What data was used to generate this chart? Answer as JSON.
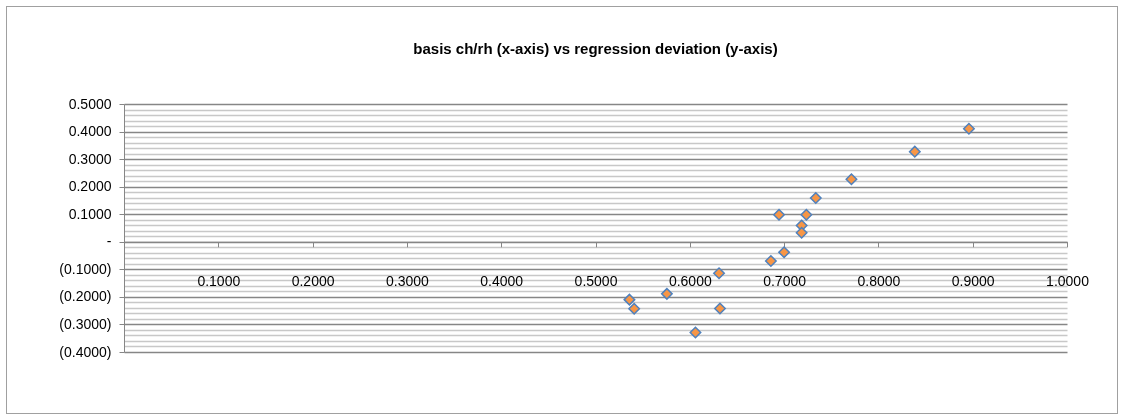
{
  "chart_data": {
    "type": "scatter",
    "title": "basis ch/rh (x-axis) vs regression deviation (y-axis)",
    "x": [
      0.896,
      0.8386,
      0.7714,
      0.7336,
      0.6946,
      0.7236,
      0.7186,
      0.7186,
      0.7,
      0.686,
      0.631,
      0.5757,
      0.536,
      0.541,
      0.632,
      0.606
    ],
    "series": [
      {
        "color": "#f79646",
        "values": [
          0.41,
          0.327,
          0.227,
          0.159,
          0.098,
          0.098,
          0.059,
          0.033,
          -0.038,
          -0.07,
          -0.114,
          -0.189,
          -0.21,
          -0.243,
          -0.242,
          -0.329
        ]
      }
    ],
    "marker": "diamond",
    "grid": "y",
    "xlim": [
      0,
      1
    ],
    "xticks": [
      {
        "value": 0,
        "label": null
      },
      {
        "value": 0.1,
        "label": "0.1000"
      },
      {
        "value": 0.2,
        "label": "0.2000"
      },
      {
        "value": 0.3,
        "label": "0.3000"
      },
      {
        "value": 0.4,
        "label": "0.4000"
      },
      {
        "value": 0.5,
        "label": "0.5000"
      },
      {
        "value": 0.6,
        "label": "0.6000"
      },
      {
        "value": 0.7,
        "label": "0.7000"
      },
      {
        "value": 0.8,
        "label": "0.8000"
      },
      {
        "value": 0.9,
        "label": "0.9000"
      },
      {
        "value": 1,
        "label": "1.0000"
      }
    ],
    "ylim": [
      -0.4,
      0.5
    ],
    "yticks": [
      {
        "value": -0.4,
        "label": "(0.4000)"
      },
      {
        "value": -0.38,
        "label": null
      },
      {
        "value": -0.36,
        "label": null
      },
      {
        "value": -0.34,
        "label": null
      },
      {
        "value": -0.32,
        "label": null
      },
      {
        "value": -0.3,
        "label": "(0.3000)"
      },
      {
        "value": -0.28,
        "label": null
      },
      {
        "value": -0.26,
        "label": null
      },
      {
        "value": -0.24,
        "label": null
      },
      {
        "value": -0.22,
        "label": null
      },
      {
        "value": -0.2,
        "label": "(0.2000)"
      },
      {
        "value": -0.18,
        "label": null
      },
      {
        "value": -0.16,
        "label": null
      },
      {
        "value": -0.14,
        "label": null
      },
      {
        "value": -0.12,
        "label": null
      },
      {
        "value": -0.1,
        "label": "(0.1000)"
      },
      {
        "value": -0.08,
        "label": null
      },
      {
        "value": -0.06,
        "label": null
      },
      {
        "value": -0.04,
        "label": null
      },
      {
        "value": -0.02,
        "label": null
      },
      {
        "value": 0,
        "label": "-"
      },
      {
        "value": 0.02,
        "label": null
      },
      {
        "value": 0.04,
        "label": null
      },
      {
        "value": 0.06,
        "label": null
      },
      {
        "value": 0.08,
        "label": null
      },
      {
        "value": 0.1,
        "label": "0.1000"
      },
      {
        "value": 0.12,
        "label": null
      },
      {
        "value": 0.14,
        "label": null
      },
      {
        "value": 0.16,
        "label": null
      },
      {
        "value": 0.18,
        "label": null
      },
      {
        "value": 0.2,
        "label": "0.2000"
      },
      {
        "value": 0.22,
        "label": null
      },
      {
        "value": 0.24,
        "label": null
      },
      {
        "value": 0.26,
        "label": null
      },
      {
        "value": 0.28,
        "label": null
      },
      {
        "value": 0.3,
        "label": "0.3000"
      },
      {
        "value": 0.32,
        "label": null
      },
      {
        "value": 0.34,
        "label": null
      },
      {
        "value": 0.36,
        "label": null
      },
      {
        "value": 0.38,
        "label": null
      },
      {
        "value": 0.4,
        "label": "0.4000"
      },
      {
        "value": 0.42,
        "label": null
      },
      {
        "value": 0.44,
        "label": null
      },
      {
        "value": 0.46,
        "label": null
      },
      {
        "value": 0.48,
        "label": null
      },
      {
        "value": 0.5,
        "label": "0.5000"
      }
    ]
  }
}
